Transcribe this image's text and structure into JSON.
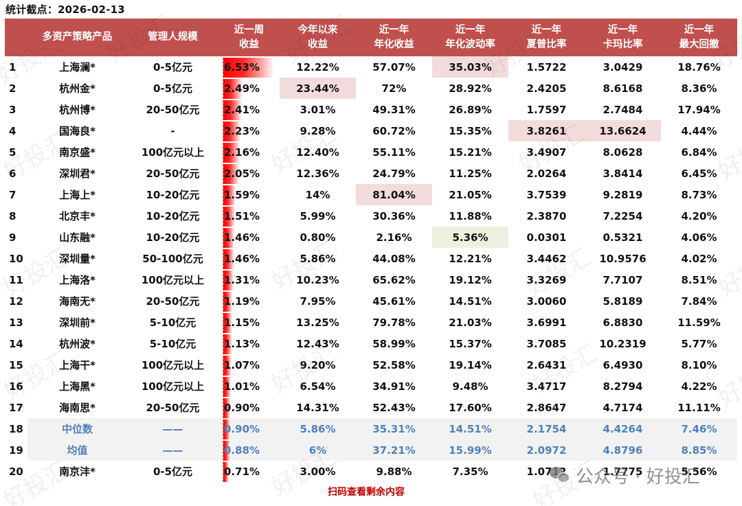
{
  "caption": "统计截点：2026-02-13",
  "table": {
    "headers": [
      {
        "line1": "",
        "line2": ""
      },
      {
        "line1": "多资产策略产品",
        "line2": ""
      },
      {
        "line1": "管理人规模",
        "line2": ""
      },
      {
        "line1": "近一周",
        "line2": "收益"
      },
      {
        "line1": "今年以来",
        "line2": "收益"
      },
      {
        "line1": "近一年",
        "line2": "年化收益"
      },
      {
        "line1": "近一年",
        "line2": "年化波动率"
      },
      {
        "line1": "近一年",
        "line2": "夏普比率"
      },
      {
        "line1": "近一年",
        "line2": "卡玛比率"
      },
      {
        "line1": "近一年",
        "line2": "最大回撤"
      }
    ],
    "rows": [
      {
        "idx": "1",
        "name": "上海澜*",
        "scale": "0-5亿元",
        "week": "6.53%",
        "week_bar": 74,
        "ytd": "12.22%",
        "ann_ret": "57.07%",
        "ann_vol": "35.03%",
        "sharpe": "1.5722",
        "calmar": "3.0429",
        "mdd": "18.76%",
        "hl": {
          "ann_vol": "red"
        }
      },
      {
        "idx": "2",
        "name": "杭州金*",
        "scale": "0-5亿元",
        "week": "2.49%",
        "week_bar": 28,
        "ytd": "23.44%",
        "ann_ret": "72%",
        "ann_vol": "28.92%",
        "sharpe": "2.4205",
        "calmar": "8.6168",
        "mdd": "8.36%",
        "hl": {
          "ytd": "red"
        }
      },
      {
        "idx": "3",
        "name": "杭州博*",
        "scale": "20-50亿元",
        "week": "2.41%",
        "week_bar": 27,
        "ytd": "3.01%",
        "ann_ret": "49.31%",
        "ann_vol": "26.89%",
        "sharpe": "1.7597",
        "calmar": "2.7484",
        "mdd": "17.94%",
        "hl": {}
      },
      {
        "idx": "4",
        "name": "国海良*",
        "scale": "-",
        "week": "2.23%",
        "week_bar": 25,
        "ytd": "9.28%",
        "ann_ret": "60.72%",
        "ann_vol": "15.35%",
        "sharpe": "3.8261",
        "calmar": "13.6624",
        "mdd": "4.44%",
        "hl": {
          "sharpe": "red",
          "calmar": "red"
        }
      },
      {
        "idx": "5",
        "name": "南京盛*",
        "scale": "100亿元以上",
        "week": "2.16%",
        "week_bar": 24,
        "ytd": "12.40%",
        "ann_ret": "55.11%",
        "ann_vol": "15.21%",
        "sharpe": "3.4907",
        "calmar": "8.0628",
        "mdd": "6.84%",
        "hl": {}
      },
      {
        "idx": "6",
        "name": "深圳君*",
        "scale": "20-50亿元",
        "week": "2.05%",
        "week_bar": 23,
        "ytd": "12.36%",
        "ann_ret": "24.79%",
        "ann_vol": "11.25%",
        "sharpe": "2.0264",
        "calmar": "3.8414",
        "mdd": "6.45%",
        "hl": {}
      },
      {
        "idx": "7",
        "name": "上海上*",
        "scale": "10-20亿元",
        "week": "1.59%",
        "week_bar": 18,
        "ytd": "14%",
        "ann_ret": "81.04%",
        "ann_vol": "21.05%",
        "sharpe": "3.7539",
        "calmar": "9.2819",
        "mdd": "8.73%",
        "hl": {
          "ann_ret": "red"
        }
      },
      {
        "idx": "8",
        "name": "北京丰*",
        "scale": "10-20亿元",
        "week": "1.51%",
        "week_bar": 17,
        "ytd": "5.99%",
        "ann_ret": "30.36%",
        "ann_vol": "11.88%",
        "sharpe": "2.3870",
        "calmar": "7.2254",
        "mdd": "4.20%",
        "hl": {}
      },
      {
        "idx": "9",
        "name": "山东融*",
        "scale": "10-20亿元",
        "week": "1.46%",
        "week_bar": 16,
        "ytd": "0.80%",
        "ann_ret": "2.16%",
        "ann_vol": "5.36%",
        "sharpe": "0.0301",
        "calmar": "0.5321",
        "mdd": "4.06%",
        "hl": {
          "ann_vol": "green"
        }
      },
      {
        "idx": "10",
        "name": "深圳量*",
        "scale": "50-100亿元",
        "week": "1.46%",
        "week_bar": 16,
        "ytd": "5.86%",
        "ann_ret": "44.08%",
        "ann_vol": "12.21%",
        "sharpe": "3.4462",
        "calmar": "10.9576",
        "mdd": "4.02%",
        "hl": {}
      },
      {
        "idx": "11",
        "name": "上海洛*",
        "scale": "100亿元以上",
        "week": "1.31%",
        "week_bar": 15,
        "ytd": "10.23%",
        "ann_ret": "65.62%",
        "ann_vol": "19.12%",
        "sharpe": "3.3269",
        "calmar": "7.7107",
        "mdd": "8.51%",
        "hl": {}
      },
      {
        "idx": "12",
        "name": "海南无*",
        "scale": "20-50亿元",
        "week": "1.19%",
        "week_bar": 13,
        "ytd": "7.95%",
        "ann_ret": "45.61%",
        "ann_vol": "14.51%",
        "sharpe": "3.0060",
        "calmar": "5.8189",
        "mdd": "7.84%",
        "hl": {}
      },
      {
        "idx": "13",
        "name": "深圳前*",
        "scale": "5-10亿元",
        "week": "1.15%",
        "week_bar": 13,
        "ytd": "13.25%",
        "ann_ret": "79.78%",
        "ann_vol": "21.03%",
        "sharpe": "3.6991",
        "calmar": "6.8830",
        "mdd": "11.59%",
        "hl": {}
      },
      {
        "idx": "14",
        "name": "杭州波*",
        "scale": "5-10亿元",
        "week": "1.13%",
        "week_bar": 13,
        "ytd": "12.43%",
        "ann_ret": "58.99%",
        "ann_vol": "15.37%",
        "sharpe": "3.7085",
        "calmar": "10.2319",
        "mdd": "5.77%",
        "hl": {}
      },
      {
        "idx": "15",
        "name": "上海干*",
        "scale": "100亿元以上",
        "week": "1.07%",
        "week_bar": 12,
        "ytd": "9.20%",
        "ann_ret": "52.58%",
        "ann_vol": "19.14%",
        "sharpe": "2.6431",
        "calmar": "6.4930",
        "mdd": "8.10%",
        "hl": {}
      },
      {
        "idx": "16",
        "name": "上海黑*",
        "scale": "100亿元以上",
        "week": "1.01%",
        "week_bar": 11,
        "ytd": "6.54%",
        "ann_ret": "34.91%",
        "ann_vol": "9.48%",
        "sharpe": "3.4717",
        "calmar": "8.2794",
        "mdd": "4.22%",
        "hl": {}
      },
      {
        "idx": "17",
        "name": "海南思*",
        "scale": "20-50亿元",
        "week": "0.90%",
        "week_bar": 10,
        "ytd": "14.31%",
        "ann_ret": "52.43%",
        "ann_vol": "17.60%",
        "sharpe": "2.8647",
        "calmar": "4.7174",
        "mdd": "11.11%",
        "hl": {}
      },
      {
        "idx": "18",
        "name": "中位数",
        "scale": "——",
        "week": "0.90%",
        "week_bar": 10,
        "ytd": "5.86%",
        "ann_ret": "35.31%",
        "ann_vol": "14.51%",
        "sharpe": "2.1754",
        "calmar": "4.4264",
        "mdd": "7.46%",
        "hl": {},
        "stat": true
      },
      {
        "idx": "19",
        "name": "均值",
        "scale": "——",
        "week": "0.88%",
        "week_bar": 10,
        "ytd": "6%",
        "ann_ret": "37.21%",
        "ann_vol": "15.99%",
        "sharpe": "2.0972",
        "calmar": "4.8796",
        "mdd": "8.85%",
        "hl": {},
        "stat": true
      },
      {
        "idx": "20",
        "name": "南京沣*",
        "scale": "0-5亿元",
        "week": "0.71%",
        "week_bar": 8,
        "ytd": "3.00%",
        "ann_ret": "9.88%",
        "ann_vol": "7.35%",
        "sharpe": "1.0712",
        "calmar": "1.7775",
        "mdd": "5.56%",
        "hl": {}
      }
    ]
  },
  "footer_note": "扫码查看剩余内容",
  "wechat_badge": "公众号 · 好投汇",
  "watermark_text": "好投汇",
  "colors": {
    "header_bg": "#c0504d",
    "highlight_red": "#f2dcdb",
    "highlight_green": "#ebf1de",
    "stat_row_bg": "#f2f2f2",
    "stat_text": "#4f81bd",
    "bar_red": "#ff0000",
    "footer_red": "#c00000"
  }
}
